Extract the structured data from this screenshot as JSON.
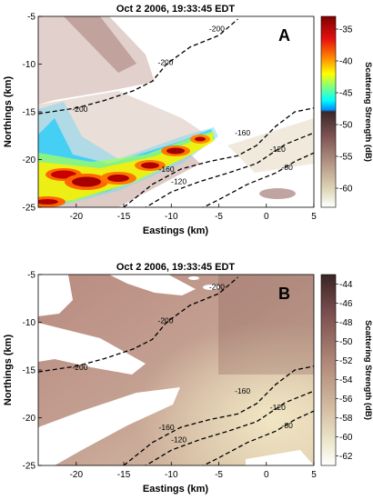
{
  "chart_data": [
    {
      "type": "heatmap",
      "panel_label": "A",
      "title": "Oct 2 2006, 19:33:45 EDT",
      "xlabel": "Eastings (km)",
      "ylabel": "Northings (km)",
      "xlim": [
        -24,
        5
      ],
      "ylim": [
        -25,
        -5
      ],
      "xticks": [
        -20,
        -15,
        -10,
        -5,
        0,
        5
      ],
      "yticks": [
        -25,
        -20,
        -15,
        -10,
        -5
      ],
      "colorbar": {
        "label": "Scattering Strength (dB)",
        "range": [
          -63,
          -33
        ],
        "ticks": [
          -35,
          -40,
          -45,
          -50,
          -55,
          -60
        ],
        "colormap": "jet above -50 dB, pink/bone below"
      },
      "contours": [
        {
          "label": "-200",
          "points": [
            [
              -24,
              -15.2
            ],
            [
              -20,
              -14.6
            ],
            [
              -17,
              -13.8
            ],
            [
              -14,
              -12.8
            ],
            [
              -12,
              -11.8
            ],
            [
              -10.5,
              -10.0
            ],
            [
              -8,
              -8.2
            ],
            [
              -5,
              -7.0
            ],
            [
              -3,
              -5.3
            ]
          ]
        },
        {
          "label": "-160",
          "points": [
            [
              -15,
              -25
            ],
            [
              -12,
              -22.6
            ],
            [
              -9,
              -21.0
            ],
            [
              -6,
              -20.2
            ],
            [
              -3,
              -19.6
            ],
            [
              -1,
              -18.5
            ],
            [
              1,
              -16.5
            ],
            [
              3,
              -15.0
            ],
            [
              5,
              -14.6
            ]
          ]
        },
        {
          "label": "-120",
          "points": [
            [
              -13,
              -25.2
            ],
            [
              -10,
              -23.4
            ],
            [
              -7,
              -22.3
            ],
            [
              -4,
              -21.4
            ],
            [
              -1,
              -20.4
            ],
            [
              2,
              -18.4
            ],
            [
              5,
              -17.2
            ]
          ]
        },
        {
          "label": "-80",
          "points": [
            [
              -7,
              -25.2
            ],
            [
              -5,
              -24.2
            ],
            [
              -2,
              -22.6
            ],
            [
              1,
              -21.4
            ],
            [
              3,
              -20.2
            ],
            [
              5,
              -19.3
            ]
          ]
        }
      ],
      "contour_label_positions": [
        {
          "label": "-200",
          "x": -5.2,
          "y": -6.3
        },
        {
          "label": "-200",
          "x": -10.6,
          "y": -9.8
        },
        {
          "label": "-200",
          "x": -19.6,
          "y": -14.7
        },
        {
          "label": "-160",
          "x": -2.5,
          "y": -17.2
        },
        {
          "label": "-160",
          "x": -10.5,
          "y": -21.0
        },
        {
          "label": "-120",
          "x": 1.2,
          "y": -18.9
        },
        {
          "label": "-120",
          "x": -9.2,
          "y": -22.3
        },
        {
          "label": "-80",
          "x": 2.2,
          "y": -20.8
        }
      ]
    },
    {
      "type": "heatmap",
      "panel_label": "B",
      "title": "Oct 2 2006, 19:33:45 EDT",
      "xlabel": "Eastings (km)",
      "ylabel": "Northings (km)",
      "xlim": [
        -24,
        5
      ],
      "ylim": [
        -25,
        -5
      ],
      "xticks": [
        -20,
        -15,
        -10,
        -5,
        0,
        5
      ],
      "yticks": [
        -25,
        -20,
        -15,
        -10,
        -5
      ],
      "colorbar": {
        "label": "Scattering Strength (dB)",
        "range": [
          -63,
          -43
        ],
        "ticks": [
          -44,
          -46,
          -48,
          -50,
          -52,
          -54,
          -56,
          -58,
          -60,
          -62
        ],
        "colormap": "pink/bone (dark brown at top to white at bottom)"
      },
      "contours": [
        {
          "label": "-200",
          "points": [
            [
              -24,
              -15.2
            ],
            [
              -20,
              -14.6
            ],
            [
              -17,
              -13.8
            ],
            [
              -14,
              -12.8
            ],
            [
              -12,
              -11.8
            ],
            [
              -10.5,
              -10.0
            ],
            [
              -8,
              -8.2
            ],
            [
              -5,
              -7.0
            ],
            [
              -3,
              -5.3
            ]
          ]
        },
        {
          "label": "-160",
          "points": [
            [
              -15,
              -25
            ],
            [
              -12,
              -22.6
            ],
            [
              -9,
              -21.0
            ],
            [
              -6,
              -20.2
            ],
            [
              -3,
              -19.6
            ],
            [
              -1,
              -18.5
            ],
            [
              1,
              -16.5
            ],
            [
              3,
              -15.0
            ],
            [
              5,
              -14.6
            ]
          ]
        },
        {
          "label": "-120",
          "points": [
            [
              -13,
              -25.2
            ],
            [
              -10,
              -23.4
            ],
            [
              -7,
              -22.3
            ],
            [
              -4,
              -21.4
            ],
            [
              -1,
              -20.4
            ],
            [
              2,
              -18.4
            ],
            [
              5,
              -17.2
            ]
          ]
        },
        {
          "label": "-80",
          "points": [
            [
              -7,
              -25.2
            ],
            [
              -5,
              -24.2
            ],
            [
              -2,
              -22.6
            ],
            [
              1,
              -21.4
            ],
            [
              3,
              -20.2
            ],
            [
              5,
              -19.3
            ]
          ]
        }
      ],
      "contour_label_positions": [
        {
          "label": "-200",
          "x": -5.2,
          "y": -6.3
        },
        {
          "label": "-200",
          "x": -10.6,
          "y": -9.8
        },
        {
          "label": "-200",
          "x": -19.6,
          "y": -14.7
        },
        {
          "label": "-160",
          "x": -2.5,
          "y": -17.2
        },
        {
          "label": "-160",
          "x": -10.5,
          "y": -21.0
        },
        {
          "label": "-120",
          "x": 1.2,
          "y": -18.9
        },
        {
          "label": "-120",
          "x": -9.2,
          "y": -22.3
        },
        {
          "label": "-80",
          "x": 2.2,
          "y": -20.8
        }
      ]
    }
  ]
}
